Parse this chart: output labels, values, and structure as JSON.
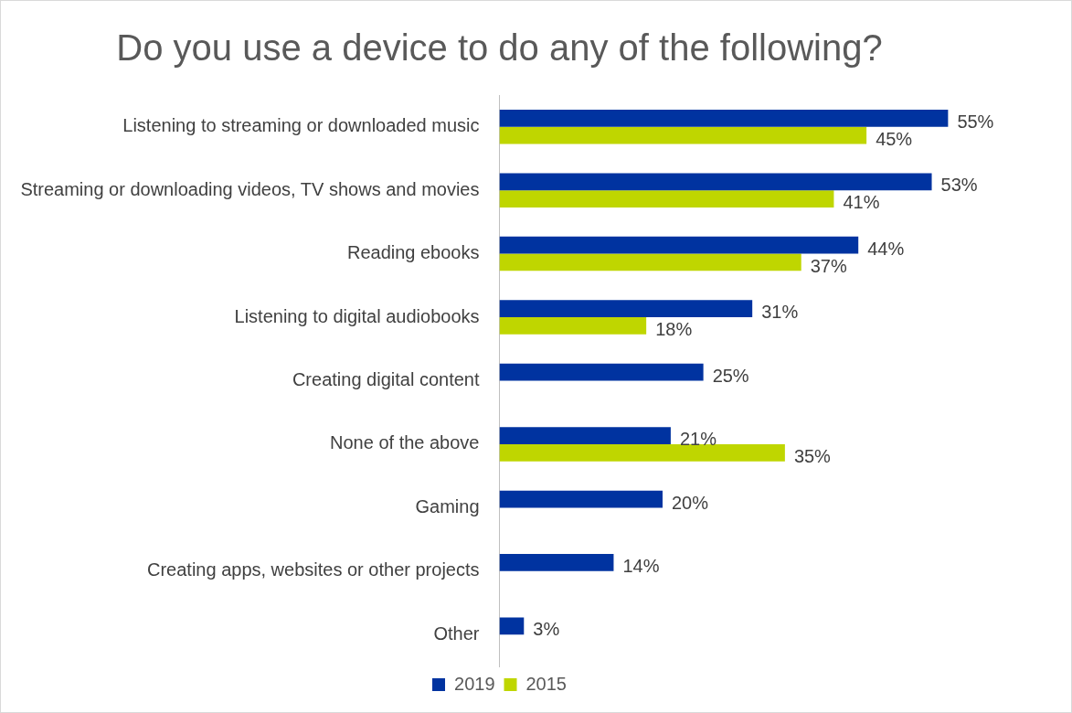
{
  "chart_data": {
    "type": "bar",
    "orientation": "horizontal",
    "title": "Do you use a device to do any of the following?",
    "categories": [
      "Listening to streaming or downloaded music",
      "Streaming or downloading videos, TV shows and movies",
      "Reading ebooks",
      "Listening to digital audiobooks",
      "Creating digital content",
      "None of the above",
      "Gaming",
      "Creating apps, websites or other projects",
      "Other"
    ],
    "series": [
      {
        "name": "2019",
        "color": "#0033a0",
        "values": [
          55,
          53,
          44,
          31,
          25,
          21,
          20,
          14,
          3
        ],
        "value_labels": [
          "55%",
          "53%",
          "44%",
          "31%",
          "25%",
          "21%",
          "20%",
          "14%",
          "3%"
        ]
      },
      {
        "name": "2015",
        "color": "#bfd600",
        "values": [
          45,
          41,
          37,
          18,
          null,
          35,
          null,
          null,
          null
        ],
        "value_labels": [
          "45%",
          "41%",
          "37%",
          "18%",
          null,
          "35%",
          null,
          null,
          null
        ]
      }
    ],
    "legend": "bottom",
    "tick_labels": "y"
  }
}
